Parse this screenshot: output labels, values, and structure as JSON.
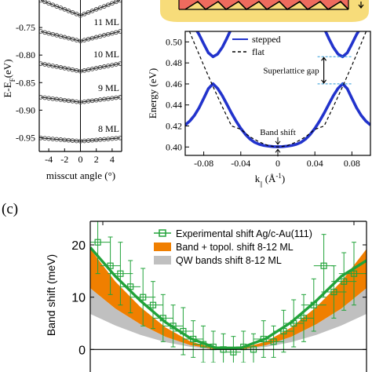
{
  "panel_label_c": "(c)",
  "colors": {
    "stepped": "#2233cc",
    "flat": "#000000",
    "marker_ml": "#444444",
    "experimental": "#22a33a",
    "band_topol": "#f07f00",
    "qw_bands": "#c0c0c0",
    "gap_marker": "#2b9bd8",
    "slab_base": "#f7dc7a",
    "slab_top": "#ee6b5e"
  },
  "chart_data": [
    {
      "id": "a_partial",
      "type": "scatter",
      "title": "",
      "xlabel": "misscut angle (°)",
      "ylabel": "E-E_F(eV)",
      "ylabel_parts": {
        "main": "E-E",
        "sub": "F",
        "tail": "(eV)"
      },
      "xlim": [
        -5.2,
        5.2
      ],
      "ylim": [
        -0.975,
        -0.7
      ],
      "xticks": [
        -4,
        -2,
        0,
        2,
        4
      ],
      "xtick_labels": [
        "-4",
        "-2",
        "0",
        "2",
        "4"
      ],
      "yticks": [
        -0.75,
        -0.8,
        -0.85,
        -0.9,
        -0.95
      ],
      "ytick_labels": [
        "-0.75",
        "-0.80",
        "-0.85",
        "-0.90",
        "-0.95"
      ],
      "x": [
        -5,
        -4.5,
        -4,
        -3.5,
        -3,
        -2.5,
        -2,
        -1.5,
        -1,
        -0.5,
        0,
        0.5,
        1,
        1.5,
        2,
        2.5,
        3,
        3.5,
        4,
        4.5,
        5
      ],
      "series": [
        {
          "label": "",
          "values": [
            -0.7005,
            -0.7033,
            -0.706,
            -0.7088,
            -0.7115,
            -0.7143,
            -0.717,
            -0.7198,
            -0.7225,
            -0.7253,
            -0.728,
            -0.7253,
            -0.7225,
            -0.7198,
            -0.717,
            -0.7143,
            -0.7115,
            -0.7088,
            -0.706,
            -0.7033,
            -0.7005
          ]
        },
        {
          "label": "11 ML",
          "values": [
            -0.757,
            -0.7588,
            -0.7605,
            -0.7623,
            -0.764,
            -0.7658,
            -0.7675,
            -0.7693,
            -0.771,
            -0.7728,
            -0.7745,
            -0.7728,
            -0.771,
            -0.7693,
            -0.7675,
            -0.7658,
            -0.764,
            -0.7623,
            -0.7605,
            -0.7588,
            -0.757
          ]
        },
        {
          "label": "10 ML",
          "values": [
            -0.8155,
            -0.8169,
            -0.8183,
            -0.8197,
            -0.821,
            -0.8224,
            -0.8238,
            -0.8252,
            -0.8265,
            -0.8279,
            -0.8293,
            -0.8279,
            -0.8265,
            -0.8252,
            -0.8238,
            -0.8224,
            -0.821,
            -0.8197,
            -0.8183,
            -0.8169,
            -0.8155
          ]
        },
        {
          "label": "9 ML",
          "values": [
            -0.8765,
            -0.8774,
            -0.8783,
            -0.8792,
            -0.8801,
            -0.881,
            -0.8819,
            -0.8828,
            -0.8837,
            -0.8846,
            -0.8855,
            -0.8846,
            -0.8837,
            -0.8828,
            -0.8819,
            -0.881,
            -0.8801,
            -0.8792,
            -0.8783,
            -0.8774,
            -0.8765
          ]
        },
        {
          "label": "8 ML",
          "values": [
            -0.9505,
            -0.9511,
            -0.9517,
            -0.9523,
            -0.9529,
            -0.9535,
            -0.954,
            -0.9546,
            -0.9552,
            -0.9558,
            -0.9564,
            -0.9558,
            -0.9552,
            -0.9546,
            -0.954,
            -0.9535,
            -0.9529,
            -0.9523,
            -0.9517,
            -0.9511,
            -0.9505
          ]
        }
      ]
    },
    {
      "id": "b_bands",
      "type": "line",
      "title": "",
      "xlabel_parts": {
        "main": "k",
        "sub": "||",
        "tail": " (Å",
        "sup": "-1",
        "end": ")"
      },
      "ylabel": "Energy (eV)",
      "xlim": [
        -0.1,
        0.1
      ],
      "ylim": [
        0.392,
        0.51
      ],
      "xticks": [
        -0.08,
        -0.04,
        0,
        0.04,
        0.08
      ],
      "xtick_labels": [
        "-0.08",
        "-0.04",
        "0",
        "0.04",
        "0.08"
      ],
      "yticks": [
        0.4,
        0.42,
        0.44,
        0.46,
        0.48,
        0.5
      ],
      "ytick_labels": [
        "0.40",
        "0.42",
        "0.44",
        "0.46",
        "0.48",
        "0.50"
      ],
      "legend": {
        "position": "top-right",
        "entries": [
          "stepped",
          "flat"
        ]
      },
      "series": [
        {
          "name": "stepped",
          "style": "solid",
          "x": [
            -0.1,
            -0.095,
            -0.09,
            -0.085,
            -0.08,
            -0.075,
            -0.07,
            -0.065,
            -0.06,
            -0.055,
            -0.05,
            -0.045,
            -0.04,
            -0.035,
            -0.03,
            -0.025,
            -0.02,
            -0.015,
            -0.01,
            -0.005,
            0,
            0.005,
            0.01,
            0.015,
            0.02,
            0.025,
            0.03,
            0.035,
            0.04,
            0.045,
            0.05,
            0.055,
            0.06,
            0.065,
            0.07,
            0.075,
            0.08,
            0.085,
            0.09,
            0.095,
            0.1
          ],
          "values": [
            0.4209,
            0.4247,
            0.4301,
            0.4373,
            0.4463,
            0.4555,
            0.4601,
            0.4558,
            0.4489,
            0.4406,
            0.4322,
            0.4245,
            0.4177,
            0.412,
            0.4075,
            0.4044,
            0.4025,
            0.4014,
            0.4008,
            0.4004,
            0.4003,
            0.4004,
            0.4008,
            0.4014,
            0.4025,
            0.4044,
            0.4075,
            0.412,
            0.4177,
            0.4245,
            0.4322,
            0.4406,
            0.4489,
            0.4558,
            0.4601,
            0.4555,
            0.4463,
            0.4373,
            0.4301,
            0.4247,
            0.4209
          ]
        },
        {
          "name": "stepped",
          "style": "solid",
          "x": [
            -0.1,
            -0.095,
            -0.09,
            -0.085,
            -0.08,
            -0.075,
            -0.07,
            -0.065,
            -0.06,
            -0.055,
            -0.05
          ],
          "values": [
            0.5231,
            0.5195,
            0.5142,
            0.507,
            0.4981,
            0.4896,
            0.4859,
            0.4884,
            0.4948,
            0.5034,
            0.513
          ]
        },
        {
          "name": "stepped",
          "style": "solid",
          "x": [
            0.05,
            0.055,
            0.06,
            0.065,
            0.07,
            0.075,
            0.08,
            0.085,
            0.09,
            0.095,
            0.1
          ],
          "values": [
            0.513,
            0.5034,
            0.4948,
            0.4884,
            0.4859,
            0.4896,
            0.4981,
            0.507,
            0.5142,
            0.5195,
            0.5231
          ]
        },
        {
          "name": "flat",
          "style": "dashed",
          "x": [
            -0.1,
            -0.09,
            -0.08,
            -0.07,
            -0.06,
            -0.05,
            -0.04,
            -0.03,
            -0.02,
            -0.01,
            0,
            0.01,
            0.02,
            0.03,
            0.04,
            0.05,
            0.06,
            0.07,
            0.08,
            0.09,
            0.1
          ],
          "values": [
            0.52,
            0.4984,
            0.4776,
            0.4576,
            0.4384,
            0.42,
            0.4168,
            0.4096,
            0.4048,
            0.4012,
            0.4,
            0.4012,
            0.4048,
            0.4096,
            0.4168,
            0.42,
            0.4384,
            0.4576,
            0.4776,
            0.4984,
            0.52
          ]
        }
      ],
      "annotations": [
        {
          "text": "Superlattice gap",
          "at": [
            0.07,
            0.473
          ]
        },
        {
          "text": "Band shift",
          "at": [
            0,
            0.4003
          ]
        }
      ]
    },
    {
      "id": "c_band_shift",
      "type": "scatter",
      "title": "",
      "xlabel": "",
      "ylabel": "Band shift (meV)",
      "xlim": [
        -5.5,
        5.5
      ],
      "ylim": [
        -2.5,
        24.5
      ],
      "yticks": [
        0,
        10,
        20
      ],
      "ytick_labels": [
        "0",
        "10",
        "20"
      ],
      "legend": {
        "position": "top-right",
        "entries": [
          "Experimental shift Ag/c-Au(111)",
          "Band + topol. shift 8-12 ML",
          "QW bands shift 8-12 ML"
        ]
      },
      "bands": [
        {
          "name": "Band + topol. shift 8-12 ML",
          "x": [
            -5.5,
            -4.5,
            -3.5,
            -2.5,
            -1.5,
            -0.5,
            0.5,
            1.5,
            2.5,
            3.5,
            4.5,
            5.5
          ],
          "lower": [
            11.7,
            7.8,
            4.8,
            2.4,
            0.8,
            0.0,
            0.0,
            0.8,
            2.4,
            4.8,
            7.8,
            11.7
          ],
          "upper": [
            19.2,
            13.0,
            8.1,
            4.2,
            1.5,
            0.2,
            0.2,
            1.5,
            4.2,
            8.1,
            13.0,
            19.2
          ]
        },
        {
          "name": "QW bands shift 8-12 ML",
          "x": [
            -5.5,
            -4.5,
            -3.5,
            -2.5,
            -1.5,
            -0.5,
            0.5,
            1.5,
            2.5,
            3.5,
            4.5,
            5.5
          ],
          "lower": [
            6.8,
            4.6,
            2.8,
            1.4,
            0.5,
            0.0,
            0.0,
            0.5,
            1.4,
            2.8,
            4.6,
            6.8
          ],
          "upper": [
            11.7,
            7.8,
            4.8,
            2.4,
            0.8,
            0.0,
            0.0,
            0.8,
            2.4,
            4.8,
            7.8,
            11.7
          ]
        }
      ],
      "experimental_fit": {
        "x": [
          -5.5,
          -4.5,
          -3.5,
          -2.5,
          -1.5,
          -0.5,
          0.5,
          1.5,
          2.5,
          3.5,
          4.5,
          5.5
        ],
        "values": [
          19.5,
          14.0,
          9.3,
          5.2,
          2.1,
          0.3,
          0.3,
          2.1,
          5.2,
          9.3,
          14.0,
          17.0
        ]
      },
      "series": [
        {
          "name": "Experimental shift Ag/c-Au(111)",
          "x": [
            -5.2,
            -4.7,
            -4.3,
            -3.9,
            -3.4,
            -3.0,
            -2.6,
            -2.2,
            -1.8,
            -1.4,
            -1.0,
            -0.6,
            -0.2,
            0.2,
            0.6,
            1.0,
            1.4,
            1.8,
            2.2,
            2.6,
            3.0,
            3.4,
            3.8,
            4.2,
            4.6,
            5.0
          ],
          "values": [
            20.5,
            16.0,
            14.5,
            12.0,
            10.0,
            8.5,
            6.0,
            4.5,
            3.5,
            2.0,
            1.0,
            0.5,
            0.0,
            -0.5,
            0.5,
            0.0,
            2.0,
            1.5,
            3.5,
            5.0,
            6.0,
            8.5,
            16.0,
            11.0,
            13.0,
            14.5
          ],
          "yerr": [
            6.0,
            5.5,
            6.0,
            5.0,
            5.5,
            4.5,
            4.5,
            4.0,
            4.5,
            3.5,
            3.5,
            3.0,
            3.0,
            3.0,
            3.0,
            3.0,
            3.5,
            3.0,
            4.0,
            4.5,
            4.5,
            5.0,
            6.0,
            5.0,
            5.5,
            6.0
          ],
          "xerr": [
            0.5,
            0.4,
            0.5,
            0.4,
            0.5,
            0.4,
            0.4,
            0.4,
            0.4,
            0.4,
            0.4,
            0.3,
            0.3,
            0.3,
            0.3,
            0.4,
            0.4,
            0.4,
            0.4,
            0.4,
            0.4,
            0.5,
            0.4,
            0.5,
            0.5,
            0.6
          ]
        }
      ]
    }
  ]
}
